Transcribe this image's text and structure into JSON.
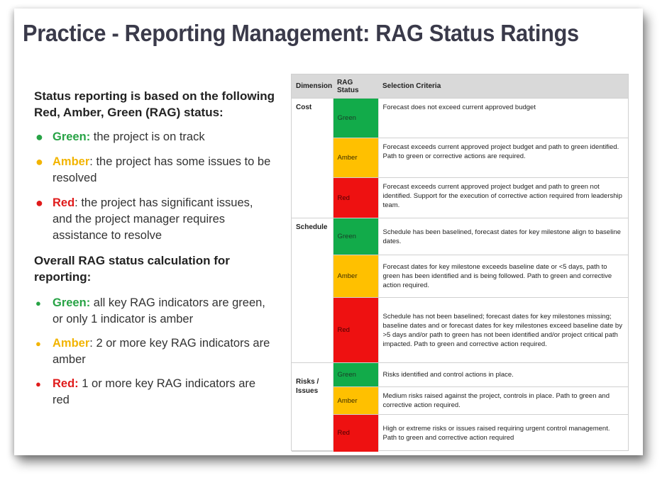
{
  "title": "Practice - Reporting Management: RAG Status Ratings",
  "left": {
    "intro": "Status reporting is based on the following Red, Amber, Green (RAG) status:",
    "status_bullets": [
      {
        "keyword": "Green",
        "sep": ":",
        "text": " the project is on track",
        "color": "#27a345"
      },
      {
        "keyword": "Amber",
        "sep": ":",
        "text": " the project has some issues to be resolved",
        "color": "#f2b400"
      },
      {
        "keyword": "Red",
        "sep": ":",
        "text": " the project has significant issues, and the project manager requires assistance to resolve",
        "color": "#e01b1b"
      }
    ],
    "overall_heading": "Overall RAG status calculation for reporting:",
    "overall_bullets": [
      {
        "keyword": "Green",
        "sep": ":",
        "text": " all key RAG indicators are green, or only 1 indicator is amber",
        "color": "#27a345"
      },
      {
        "keyword": "Amber",
        "sep": ":",
        "text": " 2 or more key RAG indicators are amber",
        "color": "#f2b400"
      },
      {
        "keyword": "Red",
        "sep": ":",
        "text": " 1 or more key RAG indicators are red",
        "color": "#e01b1b"
      }
    ]
  },
  "table": {
    "headers": [
      "Dimension",
      "RAG Status",
      "Selection Criteria"
    ],
    "rows": [
      {
        "dimension": "Cost",
        "status": "Green",
        "criteria": "Forecast does not exceed current approved budget"
      },
      {
        "dimension": "",
        "status": "Amber",
        "criteria": "Forecast exceeds current approved project budget and path to green identified. Path to green or corrective actions are required."
      },
      {
        "dimension": "",
        "status": "Red",
        "criteria": "Forecast exceeds current approved project budget and path to green not identified. Support for the execution of corrective action required from leadership team."
      },
      {
        "dimension": "Schedule",
        "status": "Green",
        "criteria": "Schedule has been baselined, forecast dates for key milestone align to baseline dates."
      },
      {
        "dimension": "",
        "status": "Amber",
        "criteria": "Forecast dates for key milestone exceeds baseline date or <5 days, path to green has been identified and is being followed. Path to green and corrective action required."
      },
      {
        "dimension": "",
        "status": "Red",
        "criteria": "Schedule has not been baselined; forecast dates for key milestones missing; baseline dates and or forecast dates for key milestones exceed baseline date by >5 days and/or path to green has not been identified and/or project critical path impacted. Path to green and corrective action required."
      },
      {
        "dimension": "Risks / Issues",
        "status": "Green",
        "criteria": "Risks identified and control actions in place."
      },
      {
        "dimension": "",
        "status": "Amber",
        "criteria": "Medium risks raised against the project, controls in place. Path to green and corrective action required."
      },
      {
        "dimension": "",
        "status": "Red",
        "criteria": "High or extreme risks or issues raised requiring urgent control management. Path to green and corrective action required"
      }
    ]
  },
  "colors": {
    "green_cell": "#12ab4a",
    "amber_cell": "#ffc000",
    "red_cell": "#ee1111",
    "header_bg": "#d9d9d9",
    "title_text": "#3a3a4a"
  }
}
